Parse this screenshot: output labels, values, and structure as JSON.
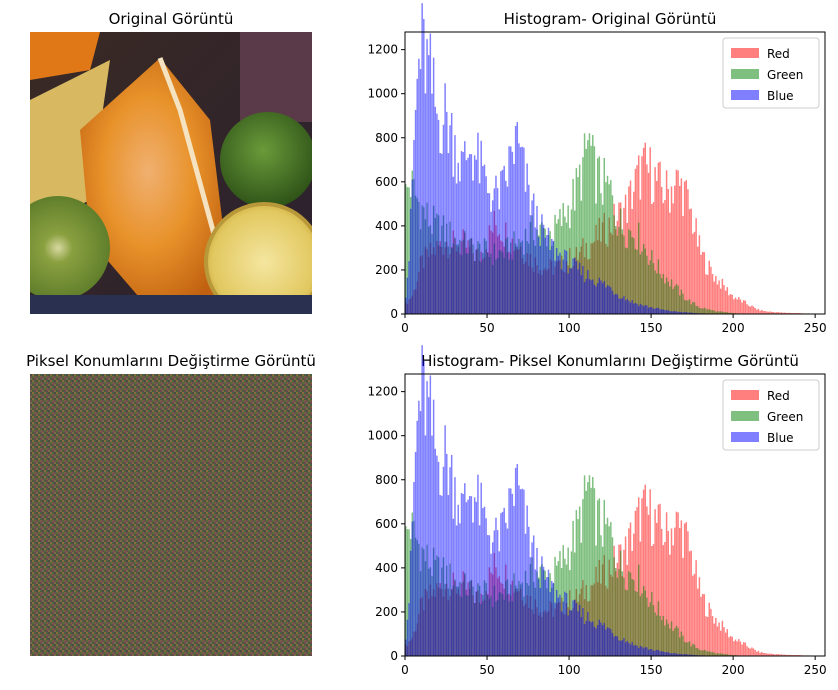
{
  "images": [
    {
      "title": "Original Görüntü"
    },
    {
      "title": "Piksel Konumlarını Değiştirme Görüntü"
    }
  ],
  "colors": {
    "red": "#ff0000",
    "green": "#008000",
    "blue": "#0000ff"
  },
  "chart_data": [
    {
      "type": "bar",
      "title": "Histogram- Original Görüntü",
      "xlabel": "",
      "ylabel": "",
      "xlim": [
        0,
        256
      ],
      "ylim": [
        0,
        1280
      ],
      "xticks": [
        0,
        50,
        100,
        150,
        200,
        250
      ],
      "yticks": [
        0,
        200,
        400,
        600,
        800,
        1000,
        1200
      ],
      "legend": "top-right",
      "grid": false,
      "bins": 256,
      "series": [
        {
          "name": "Red",
          "color": "#ff0000",
          "alpha": 0.5,
          "points": [
            [
              0,
              40
            ],
            [
              5,
              90
            ],
            [
              10,
              230
            ],
            [
              15,
              270
            ],
            [
              20,
              300
            ],
            [
              25,
              330
            ],
            [
              30,
              310
            ],
            [
              35,
              320
            ],
            [
              40,
              290
            ],
            [
              45,
              260
            ],
            [
              50,
              330
            ],
            [
              55,
              410
            ],
            [
              60,
              380
            ],
            [
              65,
              330
            ],
            [
              70,
              310
            ],
            [
              75,
              260
            ],
            [
              80,
              230
            ],
            [
              85,
              210
            ],
            [
              90,
              210
            ],
            [
              95,
              220
            ],
            [
              100,
              250
            ],
            [
              105,
              260
            ],
            [
              110,
              300
            ],
            [
              115,
              330
            ],
            [
              120,
              370
            ],
            [
              125,
              400
            ],
            [
              130,
              440
            ],
            [
              135,
              480
            ],
            [
              140,
              580
            ],
            [
              145,
              660
            ],
            [
              150,
              640
            ],
            [
              155,
              580
            ],
            [
              160,
              550
            ],
            [
              165,
              600
            ],
            [
              170,
              560
            ],
            [
              175,
              440
            ],
            [
              180,
              280
            ],
            [
              185,
              210
            ],
            [
              190,
              160
            ],
            [
              195,
              120
            ],
            [
              200,
              80
            ],
            [
              205,
              60
            ],
            [
              210,
              40
            ],
            [
              215,
              20
            ],
            [
              220,
              12
            ],
            [
              230,
              6
            ],
            [
              240,
              4
            ],
            [
              255,
              0
            ]
          ]
        },
        {
          "name": "Green",
          "color": "#008000",
          "alpha": 0.5,
          "points": [
            [
              0,
              520
            ],
            [
              3,
              600
            ],
            [
              5,
              560
            ],
            [
              10,
              480
            ],
            [
              15,
              420
            ],
            [
              20,
              390
            ],
            [
              25,
              370
            ],
            [
              30,
              340
            ],
            [
              35,
              320
            ],
            [
              40,
              300
            ],
            [
              45,
              290
            ],
            [
              50,
              280
            ],
            [
              55,
              270
            ],
            [
              60,
              280
            ],
            [
              65,
              300
            ],
            [
              70,
              330
            ],
            [
              75,
              360
            ],
            [
              80,
              380
            ],
            [
              85,
              370
            ],
            [
              90,
              360
            ],
            [
              95,
              420
            ],
            [
              100,
              480
            ],
            [
              105,
              570
            ],
            [
              110,
              700
            ],
            [
              112,
              800
            ],
            [
              115,
              650
            ],
            [
              120,
              590
            ],
            [
              125,
              560
            ],
            [
              130,
              420
            ],
            [
              135,
              380
            ],
            [
              140,
              370
            ],
            [
              145,
              320
            ],
            [
              150,
              250
            ],
            [
              155,
              200
            ],
            [
              160,
              160
            ],
            [
              165,
              120
            ],
            [
              170,
              80
            ],
            [
              175,
              50
            ],
            [
              180,
              30
            ],
            [
              190,
              12
            ],
            [
              200,
              4
            ],
            [
              210,
              0
            ],
            [
              255,
              0
            ]
          ]
        },
        {
          "name": "Blue",
          "color": "#0000ff",
          "alpha": 0.5,
          "points": [
            [
              0,
              50
            ],
            [
              3,
              300
            ],
            [
              5,
              700
            ],
            [
              8,
              1100
            ],
            [
              10,
              1200
            ],
            [
              12,
              1170
            ],
            [
              15,
              1080
            ],
            [
              18,
              960
            ],
            [
              20,
              880
            ],
            [
              25,
              900
            ],
            [
              30,
              780
            ],
            [
              35,
              660
            ],
            [
              40,
              760
            ],
            [
              45,
              680
            ],
            [
              50,
              580
            ],
            [
              55,
              530
            ],
            [
              60,
              560
            ],
            [
              65,
              720
            ],
            [
              68,
              790
            ],
            [
              70,
              720
            ],
            [
              75,
              560
            ],
            [
              80,
              430
            ],
            [
              85,
              350
            ],
            [
              90,
              300
            ],
            [
              95,
              260
            ],
            [
              100,
              230
            ],
            [
              105,
              200
            ],
            [
              110,
              180
            ],
            [
              115,
              160
            ],
            [
              120,
              140
            ],
            [
              125,
              120
            ],
            [
              130,
              90
            ],
            [
              135,
              70
            ],
            [
              140,
              50
            ],
            [
              145,
              40
            ],
            [
              150,
              30
            ],
            [
              160,
              15
            ],
            [
              170,
              8
            ],
            [
              180,
              3
            ],
            [
              190,
              0
            ],
            [
              255,
              0
            ]
          ]
        }
      ]
    },
    {
      "type": "bar",
      "title": "Histogram- Piksel Konumlarını Değiştirme Görüntü",
      "xlabel": "",
      "ylabel": "",
      "xlim": [
        0,
        256
      ],
      "ylim": [
        0,
        1280
      ],
      "xticks": [
        0,
        50,
        100,
        150,
        200,
        250
      ],
      "yticks": [
        0,
        200,
        400,
        600,
        800,
        1000,
        1200
      ],
      "legend": "top-right",
      "grid": false,
      "bins": 256,
      "series": [
        {
          "name": "Red",
          "color": "#ff0000",
          "alpha": 0.5,
          "points": [
            [
              0,
              40
            ],
            [
              5,
              90
            ],
            [
              10,
              230
            ],
            [
              15,
              270
            ],
            [
              20,
              300
            ],
            [
              25,
              330
            ],
            [
              30,
              310
            ],
            [
              35,
              320
            ],
            [
              40,
              290
            ],
            [
              45,
              260
            ],
            [
              50,
              330
            ],
            [
              55,
              410
            ],
            [
              60,
              380
            ],
            [
              65,
              330
            ],
            [
              70,
              310
            ],
            [
              75,
              260
            ],
            [
              80,
              230
            ],
            [
              85,
              210
            ],
            [
              90,
              210
            ],
            [
              95,
              220
            ],
            [
              100,
              250
            ],
            [
              105,
              260
            ],
            [
              110,
              300
            ],
            [
              115,
              330
            ],
            [
              120,
              370
            ],
            [
              125,
              400
            ],
            [
              130,
              440
            ],
            [
              135,
              480
            ],
            [
              140,
              580
            ],
            [
              145,
              660
            ],
            [
              150,
              640
            ],
            [
              155,
              580
            ],
            [
              160,
              550
            ],
            [
              165,
              600
            ],
            [
              170,
              560
            ],
            [
              175,
              440
            ],
            [
              180,
              280
            ],
            [
              185,
              210
            ],
            [
              190,
              160
            ],
            [
              195,
              120
            ],
            [
              200,
              80
            ],
            [
              205,
              60
            ],
            [
              210,
              40
            ],
            [
              215,
              20
            ],
            [
              220,
              12
            ],
            [
              230,
              6
            ],
            [
              240,
              4
            ],
            [
              255,
              0
            ]
          ]
        },
        {
          "name": "Green",
          "color": "#008000",
          "alpha": 0.5,
          "points": [
            [
              0,
              520
            ],
            [
              3,
              600
            ],
            [
              5,
              560
            ],
            [
              10,
              480
            ],
            [
              15,
              420
            ],
            [
              20,
              390
            ],
            [
              25,
              370
            ],
            [
              30,
              340
            ],
            [
              35,
              320
            ],
            [
              40,
              300
            ],
            [
              45,
              290
            ],
            [
              50,
              280
            ],
            [
              55,
              270
            ],
            [
              60,
              280
            ],
            [
              65,
              300
            ],
            [
              70,
              330
            ],
            [
              75,
              360
            ],
            [
              80,
              380
            ],
            [
              85,
              370
            ],
            [
              90,
              360
            ],
            [
              95,
              420
            ],
            [
              100,
              480
            ],
            [
              105,
              570
            ],
            [
              110,
              700
            ],
            [
              112,
              800
            ],
            [
              115,
              650
            ],
            [
              120,
              590
            ],
            [
              125,
              560
            ],
            [
              130,
              420
            ],
            [
              135,
              380
            ],
            [
              140,
              370
            ],
            [
              145,
              320
            ],
            [
              150,
              250
            ],
            [
              155,
              200
            ],
            [
              160,
              160
            ],
            [
              165,
              120
            ],
            [
              170,
              80
            ],
            [
              175,
              50
            ],
            [
              180,
              30
            ],
            [
              190,
              12
            ],
            [
              200,
              4
            ],
            [
              210,
              0
            ],
            [
              255,
              0
            ]
          ]
        },
        {
          "name": "Blue",
          "color": "#0000ff",
          "alpha": 0.5,
          "points": [
            [
              0,
              50
            ],
            [
              3,
              300
            ],
            [
              5,
              700
            ],
            [
              8,
              1100
            ],
            [
              10,
              1200
            ],
            [
              12,
              1170
            ],
            [
              15,
              1080
            ],
            [
              18,
              960
            ],
            [
              20,
              880
            ],
            [
              25,
              900
            ],
            [
              30,
              780
            ],
            [
              35,
              660
            ],
            [
              40,
              760
            ],
            [
              45,
              680
            ],
            [
              50,
              580
            ],
            [
              55,
              530
            ],
            [
              60,
              560
            ],
            [
              65,
              720
            ],
            [
              68,
              790
            ],
            [
              70,
              720
            ],
            [
              75,
              560
            ],
            [
              80,
              430
            ],
            [
              85,
              350
            ],
            [
              90,
              300
            ],
            [
              95,
              260
            ],
            [
              100,
              230
            ],
            [
              105,
              200
            ],
            [
              110,
              180
            ],
            [
              115,
              160
            ],
            [
              120,
              140
            ],
            [
              125,
              120
            ],
            [
              130,
              90
            ],
            [
              135,
              70
            ],
            [
              140,
              50
            ],
            [
              145,
              40
            ],
            [
              150,
              30
            ],
            [
              160,
              15
            ],
            [
              170,
              8
            ],
            [
              180,
              3
            ],
            [
              190,
              0
            ],
            [
              255,
              0
            ]
          ]
        }
      ]
    }
  ]
}
